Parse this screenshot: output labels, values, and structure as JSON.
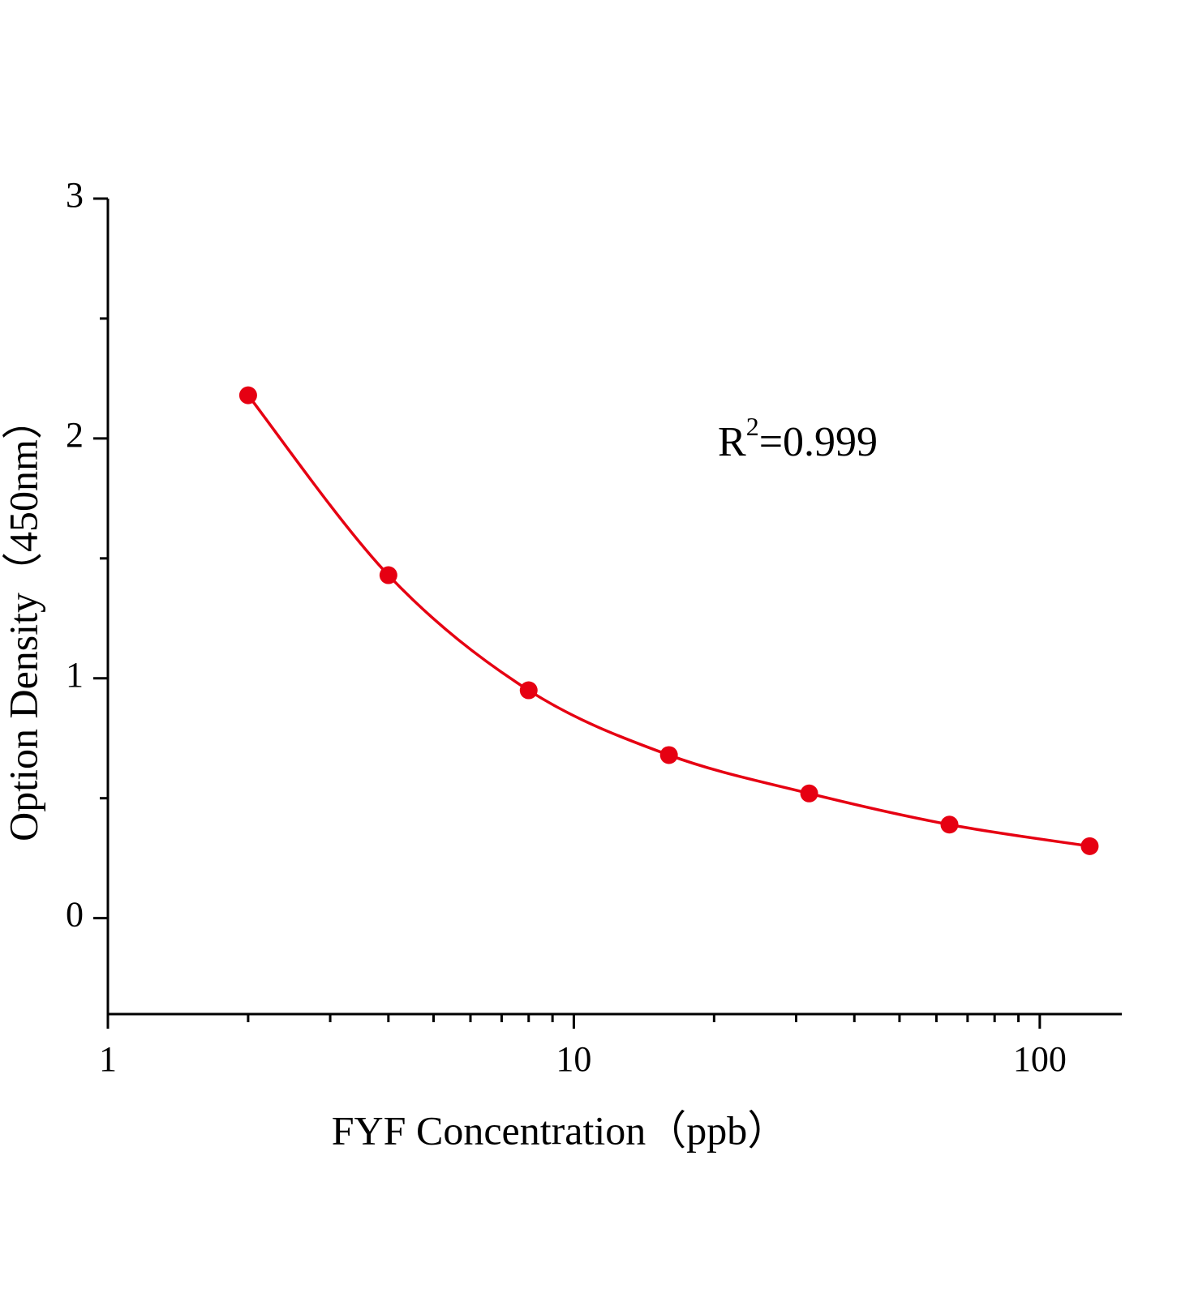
{
  "chart_data": {
    "type": "scatter",
    "x_label": "FYF  Concentration（ppb）",
    "y_label": "Option Density（450nm）",
    "annotation": {
      "text": "R",
      "superscript": "2",
      "suffix": "=0.999"
    },
    "series": [
      {
        "color": "#e60012",
        "x": [
          2,
          4,
          8,
          16,
          32,
          64,
          128
        ],
        "values": [
          2.18,
          1.43,
          0.95,
          0.68,
          0.52,
          0.39,
          0.3
        ]
      }
    ],
    "xlim": [
      1,
      150
    ],
    "xscale": "log",
    "xticks": [
      1,
      10,
      100
    ],
    "xminor": [
      2,
      3,
      4,
      5,
      6,
      7,
      8,
      9,
      20,
      30,
      40,
      50,
      60,
      70,
      80,
      90
    ],
    "ylim": [
      -0.4,
      3
    ],
    "yticks": [
      0,
      1,
      2,
      3
    ],
    "yminor": [
      0.5,
      1.5,
      2.5
    ],
    "fit_line": true
  }
}
